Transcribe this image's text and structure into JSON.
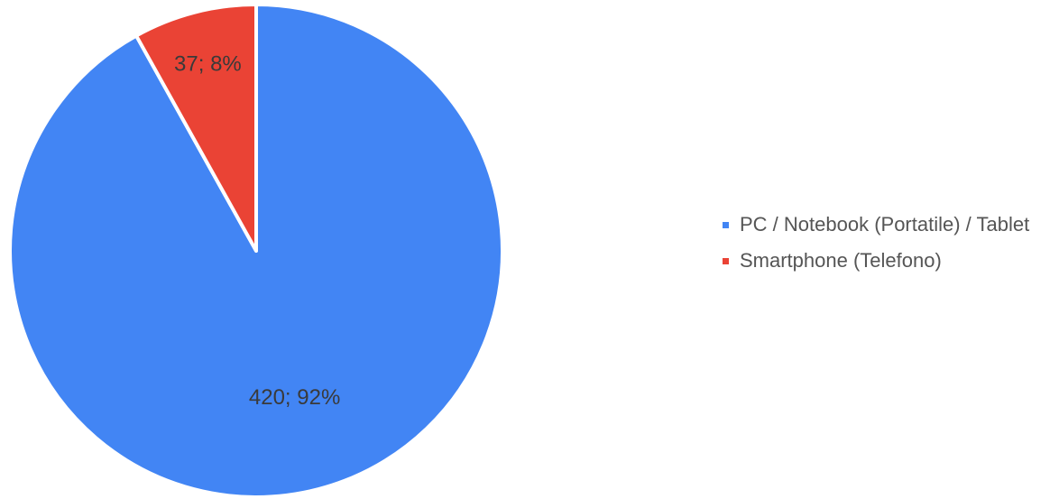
{
  "chart_data": {
    "type": "pie",
    "start_angle_deg": 0,
    "direction": "clockwise",
    "legend_position": "right",
    "slices": [
      {
        "label": "PC / Notebook (Portatile) / Tablet",
        "value": 420,
        "percent": 92,
        "data_label": "420; 92%",
        "color": "#4285f4"
      },
      {
        "label": "Smartphone (Telefono)",
        "value": 37,
        "percent": 8,
        "data_label": "37; 8%",
        "color": "#ea4335"
      }
    ]
  },
  "legend": {
    "items": [
      {
        "label": "PC / Notebook (Portatile) / Tablet",
        "color": "#4285f4"
      },
      {
        "label": "Smartphone (Telefono)",
        "color": "#ea4335"
      }
    ]
  }
}
